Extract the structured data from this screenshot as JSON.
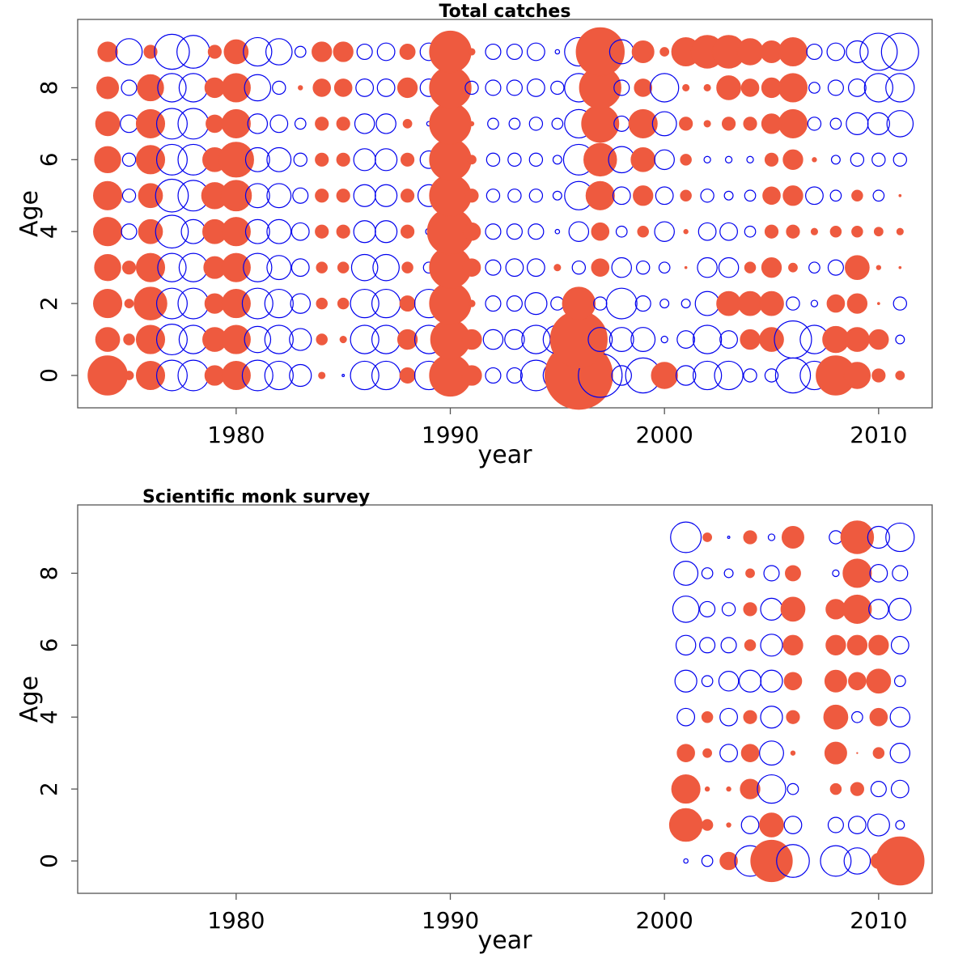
{
  "colors": {
    "positive": "#ee5a3f",
    "negative": "#0000ee",
    "frame": "#555555",
    "text": "#000000"
  },
  "chart_data": [
    {
      "type": "bubble",
      "title": "Total catches",
      "xlabel": "year",
      "ylabel": "Age",
      "xlim": [
        1972.6,
        2012.5
      ],
      "ylim": [
        -0.9,
        9.9
      ],
      "xticks": [
        1980,
        1990,
        2000,
        2010
      ],
      "yticks": [
        0,
        2,
        4,
        6,
        8
      ],
      "ages": [
        0,
        1,
        2,
        3,
        4,
        5,
        6,
        7,
        8,
        9
      ],
      "years": [
        1974,
        1975,
        1976,
        1977,
        1978,
        1979,
        1980,
        1981,
        1982,
        1983,
        1984,
        1985,
        1986,
        1987,
        1988,
        1989,
        1990,
        1991,
        1992,
        1993,
        1994,
        1995,
        1996,
        1997,
        1998,
        1999,
        2000,
        2001,
        2002,
        2003,
        2004,
        2005,
        2006,
        2007,
        2008,
        2009,
        2010,
        2011
      ],
      "residuals": [
        [
          1.8,
          0.4,
          1.3,
          -1.4,
          -1.4,
          0.9,
          1.3,
          -1.4,
          -1.3,
          -1.0,
          0.3,
          -0.1,
          -1.3,
          -1.3,
          0.7,
          -1.3,
          1.9,
          0.9,
          -0.7,
          -0.7,
          -1.4,
          -1.3,
          3.1,
          -2.0,
          -0.9,
          -1.6,
          1.2,
          -0.9,
          -1.3,
          -1.3,
          -0.6,
          -0.6,
          -1.6,
          -1.3,
          1.8,
          1.2,
          0.6,
          0.4
        ],
        [
          1.1,
          0.5,
          1.3,
          -1.4,
          -1.3,
          1.1,
          1.3,
          -1.2,
          -1.3,
          -1.0,
          0.5,
          0.3,
          -1.3,
          -1.3,
          0.9,
          -1.3,
          1.8,
          0.9,
          -0.9,
          -0.9,
          -1.3,
          -1.3,
          2.6,
          -1.1,
          -1.1,
          -1.1,
          -0.3,
          -0.8,
          -1.3,
          -0.8,
          0.9,
          1.1,
          -1.7,
          -1.3,
          1.2,
          1.1,
          0.9,
          -0.4
        ],
        [
          1.3,
          0.4,
          1.5,
          -1.4,
          -1.4,
          0.9,
          1.3,
          -1.4,
          -1.3,
          -0.9,
          0.5,
          0.5,
          -1.3,
          -1.3,
          0.7,
          -1.3,
          1.9,
          0.3,
          -0.7,
          -0.7,
          -1.0,
          -0.6,
          1.5,
          -0.6,
          -1.4,
          -0.7,
          -0.4,
          -0.4,
          -1.1,
          1.1,
          1.1,
          1.1,
          -0.6,
          -0.3,
          0.8,
          0.9,
          0.1,
          -0.6
        ],
        [
          1.2,
          0.6,
          1.3,
          -1.3,
          -1.3,
          1.0,
          1.3,
          -1.3,
          -1.1,
          -0.8,
          0.5,
          0.5,
          -1.2,
          -1.2,
          0.5,
          -0.5,
          1.9,
          0.8,
          -0.7,
          -0.8,
          -0.8,
          0.3,
          -0.6,
          0.8,
          -0.9,
          -0.6,
          -0.5,
          0.1,
          -0.9,
          -0.9,
          0.5,
          0.9,
          0.4,
          -0.5,
          -0.7,
          1.1,
          0.2,
          0.1
        ],
        [
          1.3,
          -0.7,
          1.1,
          -1.5,
          -1.1,
          1.1,
          1.3,
          -1.1,
          -1.1,
          -0.8,
          0.6,
          0.6,
          -1.0,
          -1.0,
          0.6,
          -0.3,
          2.1,
          0.8,
          -0.7,
          -0.7,
          -0.7,
          -0.2,
          -0.9,
          0.8,
          -0.5,
          0.5,
          -0.9,
          0.2,
          -0.8,
          -0.8,
          -0.5,
          0.6,
          0.6,
          0.3,
          0.5,
          0.5,
          0.4,
          0.3
        ],
        [
          1.3,
          -0.6,
          1.1,
          -1.5,
          -1.4,
          1.2,
          1.4,
          -1.1,
          -1.1,
          -0.7,
          0.6,
          0.6,
          -1.0,
          -1.0,
          0.6,
          -1.0,
          1.9,
          0.6,
          -0.6,
          -0.6,
          -0.6,
          -0.4,
          -1.3,
          1.3,
          -0.8,
          0.9,
          -0.8,
          0.5,
          -0.6,
          -0.4,
          -0.5,
          0.8,
          0.9,
          -0.8,
          -0.5,
          0.5,
          -0.5,
          0.1
        ],
        [
          1.2,
          -0.6,
          1.3,
          -1.4,
          -1.4,
          1.1,
          1.6,
          -1.1,
          -1.1,
          -0.6,
          0.6,
          0.6,
          -1.0,
          -1.0,
          0.6,
          -0.8,
          1.9,
          0.4,
          -0.6,
          -0.6,
          -0.6,
          -0.4,
          -1.4,
          1.5,
          -1.2,
          1.1,
          -0.9,
          0.5,
          -0.3,
          -0.3,
          -0.3,
          0.6,
          0.9,
          0.2,
          -0.4,
          -0.6,
          -0.6,
          -0.6
        ],
        [
          1.1,
          -0.8,
          1.3,
          -1.4,
          -1.4,
          0.8,
          1.3,
          -0.9,
          -0.8,
          -0.5,
          0.6,
          0.6,
          -0.9,
          -0.9,
          0.4,
          -0.2,
          1.9,
          0.2,
          -0.5,
          -0.5,
          -0.6,
          -0.5,
          -1.3,
          1.7,
          -0.7,
          1.3,
          -1.1,
          0.6,
          0.3,
          0.6,
          0.6,
          0.9,
          1.3,
          -0.6,
          -0.5,
          -1.0,
          -1.0,
          -1.2
        ],
        [
          1.0,
          -0.7,
          1.2,
          -1.3,
          -1.3,
          0.9,
          1.3,
          -1.2,
          -0.6,
          0.2,
          0.8,
          0.8,
          -0.8,
          -0.8,
          0.9,
          -0.8,
          1.9,
          -0.6,
          -0.7,
          -0.7,
          -0.8,
          -0.6,
          -1.3,
          1.9,
          -0.7,
          0.8,
          -1.3,
          0.3,
          0.3,
          1.1,
          0.8,
          0.9,
          1.3,
          -0.5,
          -0.7,
          -0.8,
          -1.3,
          -1.3
        ],
        [
          0.9,
          -1.2,
          0.6,
          -1.6,
          -1.5,
          0.6,
          1.1,
          -1.3,
          -1.2,
          -0.5,
          0.9,
          0.9,
          -0.7,
          -0.8,
          0.7,
          -0.8,
          1.9,
          0.3,
          -0.7,
          -0.7,
          -0.8,
          -0.2,
          -1.3,
          2.2,
          -1.1,
          1.0,
          0.4,
          1.3,
          1.5,
          1.5,
          1.2,
          1.0,
          1.3,
          -0.7,
          -0.8,
          -1.0,
          -1.7,
          -1.7
        ]
      ]
    },
    {
      "type": "bubble",
      "title": "Scientific monk survey",
      "xlabel": "year",
      "ylabel": "Age",
      "xlim": [
        1972.6,
        2012.5
      ],
      "ylim": [
        -0.9,
        9.9
      ],
      "xticks": [
        1980,
        1990,
        2000,
        2010
      ],
      "yticks": [
        0,
        2,
        4,
        6,
        8
      ],
      "ages": [
        0,
        1,
        2,
        3,
        4,
        5,
        6,
        7,
        8,
        9
      ],
      "years": [
        2001,
        2002,
        2003,
        2004,
        2005,
        2006,
        2008,
        2009,
        2010,
        2011
      ],
      "residuals": [
        [
          -0.2,
          -0.5,
          0.8,
          -1.4,
          1.9,
          -1.5,
          -1.4,
          -1.2,
          0.7,
          2.2
        ],
        [
          1.5,
          0.5,
          0.2,
          -0.8,
          1.1,
          -0.8,
          -0.7,
          -0.8,
          -1.0,
          -0.4
        ],
        [
          1.3,
          0.2,
          0.2,
          0.9,
          -1.3,
          -0.5,
          0.5,
          0.6,
          -0.7,
          -0.8
        ],
        [
          0.8,
          0.4,
          -0.8,
          0.8,
          -1.1,
          0.2,
          1.0,
          0.05,
          0.5,
          -0.9
        ],
        [
          -0.8,
          0.5,
          -0.8,
          0.6,
          -1.0,
          0.6,
          1.1,
          -0.5,
          0.8,
          -0.9
        ],
        [
          -1.0,
          -0.5,
          -0.9,
          -1.0,
          -1.0,
          0.8,
          1.0,
          0.8,
          1.1,
          -0.5
        ],
        [
          -0.9,
          -0.7,
          -0.7,
          0.5,
          -1.0,
          0.9,
          0.9,
          0.9,
          0.9,
          -0.8
        ],
        [
          -1.2,
          -0.7,
          -0.6,
          0.6,
          -1.0,
          1.1,
          0.9,
          1.3,
          -0.9,
          -1.0
        ],
        [
          -1.1,
          -0.5,
          -0.4,
          0.4,
          -0.7,
          0.7,
          -0.3,
          1.3,
          -0.8,
          -0.7
        ],
        [
          -1.4,
          0.4,
          -0.1,
          0.6,
          -0.3,
          1.0,
          -0.6,
          1.5,
          -1.0,
          -1.3
        ]
      ]
    }
  ]
}
